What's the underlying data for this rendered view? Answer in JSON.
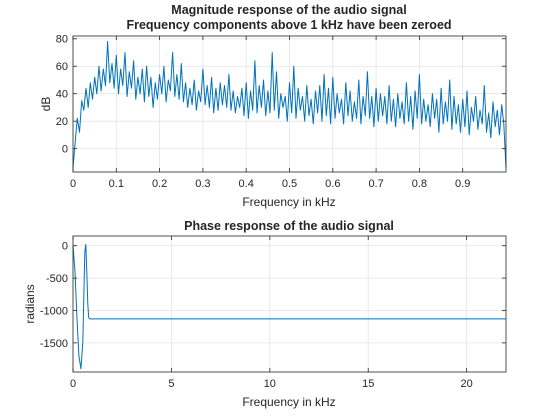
{
  "chart_data": [
    {
      "type": "line",
      "title": "Magnitude response of the audio signal",
      "subtitle": "Frequency components above 1 kHz have been zeroed",
      "xlabel": "Frequency in kHz",
      "ylabel": "dB",
      "xlim": [
        0,
        1
      ],
      "ylim": [
        -17,
        82
      ],
      "xticks": [
        0,
        0.1,
        0.2,
        0.3,
        0.4,
        0.5,
        0.6,
        0.7,
        0.8,
        0.9
      ],
      "yticks": [
        0,
        20,
        40,
        60,
        80
      ],
      "xtick_labels": [
        "0",
        "0.1",
        "0.2",
        "0.3",
        "0.4",
        "0.5",
        "0.6",
        "0.7",
        "0.8",
        "0.9"
      ],
      "ytick_labels": [
        "0",
        "20",
        "40",
        "60",
        "80"
      ],
      "grid": true,
      "color": "#0072bd",
      "x": [
        0,
        0.005,
        0.01,
        0.015,
        0.02,
        0.025,
        0.03,
        0.035,
        0.04,
        0.045,
        0.05,
        0.055,
        0.06,
        0.065,
        0.07,
        0.075,
        0.08,
        0.085,
        0.09,
        0.095,
        0.1,
        0.105,
        0.11,
        0.115,
        0.12,
        0.125,
        0.13,
        0.135,
        0.14,
        0.145,
        0.15,
        0.155,
        0.16,
        0.165,
        0.17,
        0.175,
        0.18,
        0.185,
        0.19,
        0.195,
        0.2,
        0.205,
        0.21,
        0.215,
        0.22,
        0.225,
        0.23,
        0.235,
        0.24,
        0.245,
        0.25,
        0.255,
        0.26,
        0.265,
        0.27,
        0.275,
        0.28,
        0.285,
        0.29,
        0.295,
        0.3,
        0.305,
        0.31,
        0.315,
        0.32,
        0.325,
        0.33,
        0.335,
        0.34,
        0.345,
        0.35,
        0.355,
        0.36,
        0.365,
        0.37,
        0.375,
        0.38,
        0.385,
        0.39,
        0.395,
        0.4,
        0.405,
        0.41,
        0.415,
        0.42,
        0.425,
        0.43,
        0.435,
        0.44,
        0.445,
        0.45,
        0.455,
        0.46,
        0.465,
        0.47,
        0.475,
        0.48,
        0.485,
        0.49,
        0.495,
        0.5,
        0.505,
        0.51,
        0.515,
        0.52,
        0.525,
        0.53,
        0.535,
        0.54,
        0.545,
        0.55,
        0.555,
        0.56,
        0.565,
        0.57,
        0.575,
        0.58,
        0.585,
        0.59,
        0.595,
        0.6,
        0.605,
        0.61,
        0.615,
        0.62,
        0.625,
        0.63,
        0.635,
        0.64,
        0.645,
        0.65,
        0.655,
        0.66,
        0.665,
        0.67,
        0.675,
        0.68,
        0.685,
        0.69,
        0.695,
        0.7,
        0.705,
        0.71,
        0.715,
        0.72,
        0.725,
        0.73,
        0.735,
        0.74,
        0.745,
        0.75,
        0.755,
        0.76,
        0.765,
        0.77,
        0.775,
        0.78,
        0.785,
        0.79,
        0.795,
        0.8,
        0.805,
        0.81,
        0.815,
        0.82,
        0.825,
        0.83,
        0.835,
        0.84,
        0.845,
        0.85,
        0.855,
        0.86,
        0.865,
        0.87,
        0.875,
        0.88,
        0.885,
        0.89,
        0.895,
        0.9,
        0.905,
        0.91,
        0.915,
        0.92,
        0.925,
        0.93,
        0.935,
        0.94,
        0.945,
        0.95,
        0.955,
        0.96,
        0.965,
        0.97,
        0.975,
        0.98,
        0.985,
        0.99,
        0.995,
        1.0
      ],
      "y": [
        -14,
        5,
        22,
        12,
        35,
        28,
        44,
        30,
        48,
        36,
        52,
        40,
        60,
        42,
        58,
        46,
        78,
        48,
        62,
        44,
        68,
        40,
        58,
        46,
        70,
        38,
        56,
        44,
        64,
        36,
        52,
        40,
        58,
        34,
        60,
        38,
        52,
        30,
        48,
        36,
        54,
        40,
        60,
        34,
        50,
        42,
        70,
        38,
        54,
        36,
        62,
        34,
        48,
        30,
        44,
        32,
        50,
        28,
        42,
        34,
        58,
        32,
        46,
        30,
        52,
        26,
        44,
        28,
        48,
        32,
        46,
        30,
        54,
        28,
        42,
        26,
        38,
        30,
        44,
        24,
        48,
        22,
        42,
        28,
        64,
        26,
        46,
        30,
        50,
        24,
        42,
        26,
        70,
        28,
        56,
        22,
        40,
        30,
        38,
        20,
        48,
        26,
        60,
        22,
        44,
        28,
        38,
        20,
        46,
        24,
        36,
        18,
        42,
        26,
        46,
        20,
        54,
        24,
        44,
        18,
        52,
        22,
        40,
        26,
        36,
        18,
        48,
        24,
        42,
        20,
        34,
        22,
        50,
        18,
        38,
        24,
        56,
        22,
        38,
        16,
        44,
        20,
        40,
        24,
        38,
        18,
        46,
        20,
        36,
        16,
        40,
        22,
        34,
        18,
        48,
        20,
        38,
        14,
        42,
        22,
        54,
        18,
        36,
        20,
        32,
        16,
        40,
        22,
        36,
        12,
        44,
        18,
        34,
        20,
        50,
        14,
        38,
        18,
        32,
        12,
        36,
        16,
        42,
        10,
        30,
        20,
        38,
        14,
        28,
        18,
        46,
        12,
        26,
        8,
        34,
        16,
        28,
        10,
        32,
        18,
        -14
      ]
    },
    {
      "type": "line",
      "title": "Phase response of the audio signal",
      "xlabel": "Frequency in kHz",
      "ylabel": "radians",
      "xlim": [
        0,
        22
      ],
      "ylim": [
        -1950,
        150
      ],
      "xticks": [
        0,
        5,
        10,
        15,
        20
      ],
      "yticks": [
        -1500,
        -1000,
        -500,
        0
      ],
      "xtick_labels": [
        "0",
        "5",
        "10",
        "15",
        "20"
      ],
      "ytick_labels": [
        "-1500",
        "-1000",
        "-500",
        "0"
      ],
      "grid": true,
      "color": "#0072bd",
      "x": [
        0,
        0.1,
        0.2,
        0.3,
        0.4,
        0.5,
        0.55,
        0.6,
        0.65,
        0.7,
        0.75,
        0.8,
        0.85,
        0.9,
        0.95,
        1.0,
        22
      ],
      "y": [
        0,
        -400,
        -1100,
        -1700,
        -1900,
        -1500,
        -800,
        -100,
        20,
        -400,
        -900,
        -1110,
        -1130,
        -1130,
        -1130,
        -1130,
        -1130
      ]
    }
  ]
}
